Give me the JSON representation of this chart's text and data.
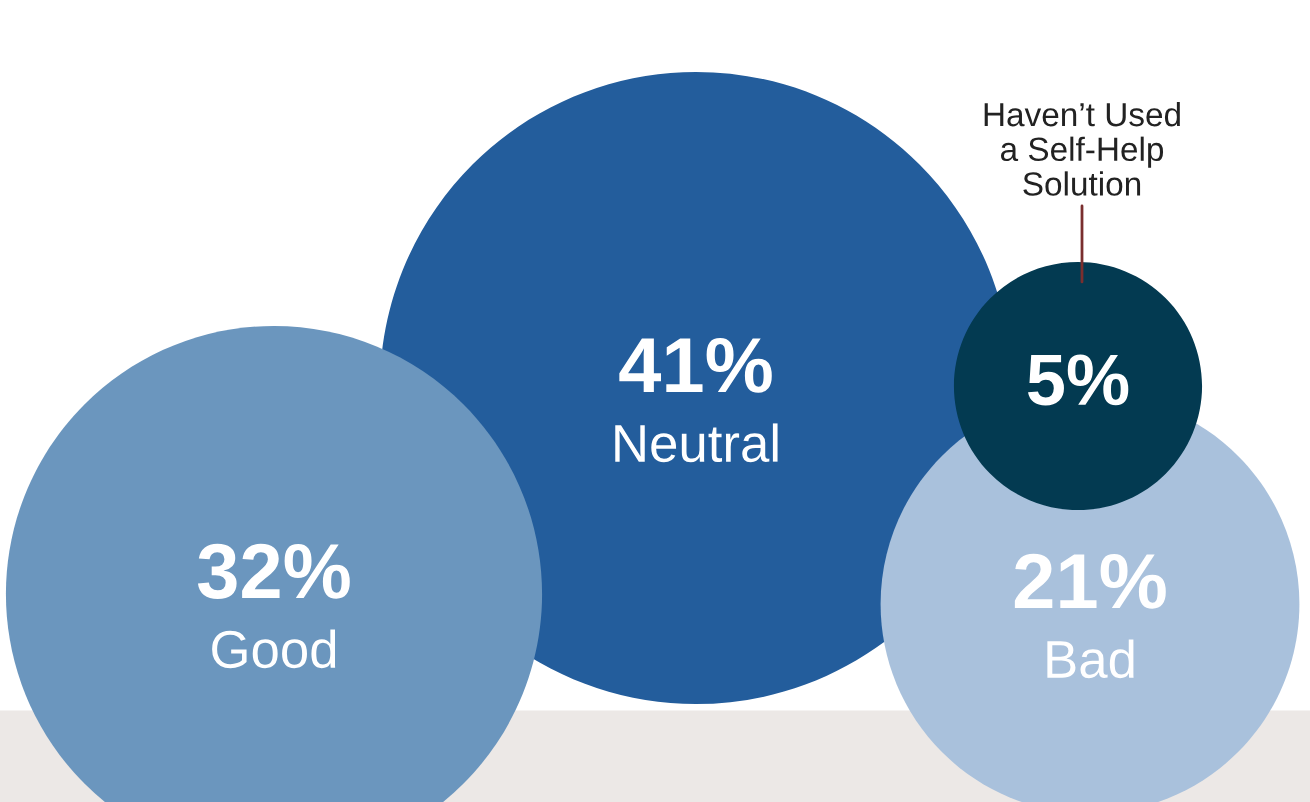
{
  "chart_data": {
    "type": "other",
    "categories": [
      "Good",
      "Neutral",
      "Haven’t Used\na Self-Help\nSolution",
      "Bad"
    ],
    "values": [
      32,
      41,
      5,
      21
    ],
    "value_labels": [
      "32%",
      "41%",
      "5%",
      "21%"
    ],
    "colors": [
      "#6b96be",
      "#235d9c",
      "#033a51",
      "#a9c1dc"
    ]
  }
}
